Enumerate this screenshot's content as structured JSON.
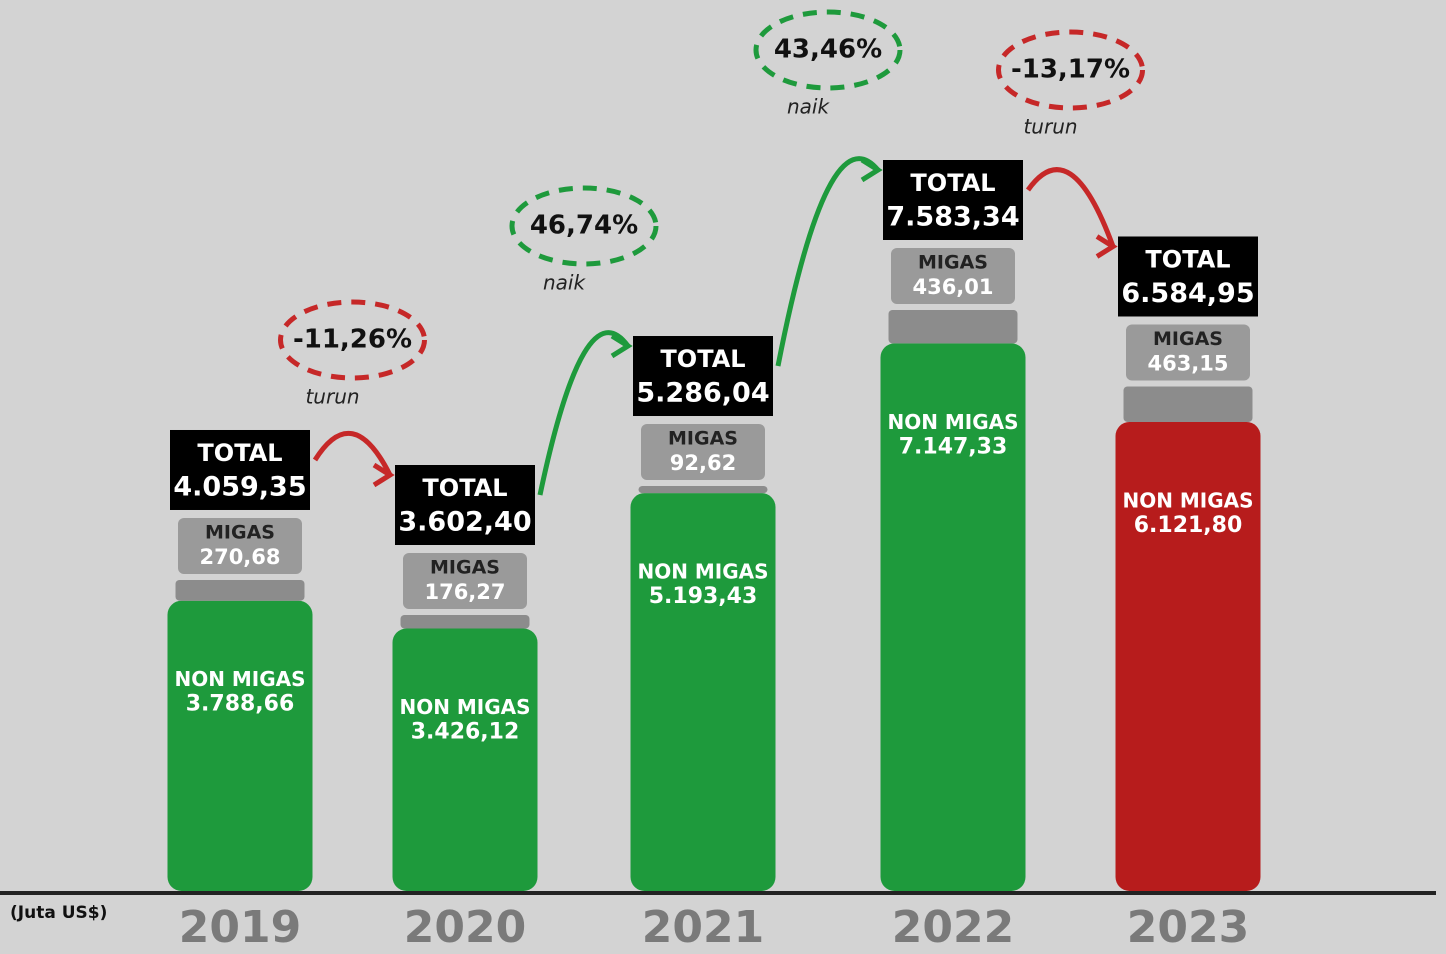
{
  "chart_data": {
    "type": "stacked-bar",
    "unit": "(Juta US$)",
    "categories": [
      "2019",
      "2020",
      "2021",
      "2022",
      "2023"
    ],
    "series": [
      {
        "name": "NON MIGAS",
        "color": "#1e9a3c",
        "colors": [
          "#1e9a3c",
          "#1e9a3c",
          "#1e9a3c",
          "#1e9a3c",
          "#b71c1c"
        ],
        "values": [
          3788.66,
          3426.12,
          5193.43,
          7147.33,
          6121.8
        ],
        "value_labels": [
          "3.788,66",
          "3.426,12",
          "5.193,43",
          "7.147,33",
          "6.121,80"
        ]
      },
      {
        "name": "MIGAS",
        "color": "#8c8c8c",
        "values": [
          270.68,
          176.27,
          92.62,
          436.01,
          463.15
        ],
        "value_labels": [
          "270,68",
          "176,27",
          "92,62",
          "436,01",
          "463,15"
        ]
      }
    ],
    "totals": {
      "name": "TOTAL",
      "values": [
        4059.35,
        3602.4,
        5286.04,
        7583.34,
        6584.95
      ],
      "value_labels": [
        "4.059,35",
        "3.602,40",
        "5.286,04",
        "7.583,34",
        "6.584,95"
      ]
    },
    "changes": {
      "values": [
        -11.26,
        46.74,
        43.46,
        -13.17
      ],
      "value_labels": [
        "-11,26%",
        "46,74%",
        "43,46%",
        "-13,17%"
      ],
      "labels": [
        "turun",
        "naik",
        "naik",
        "turun"
      ]
    }
  }
}
